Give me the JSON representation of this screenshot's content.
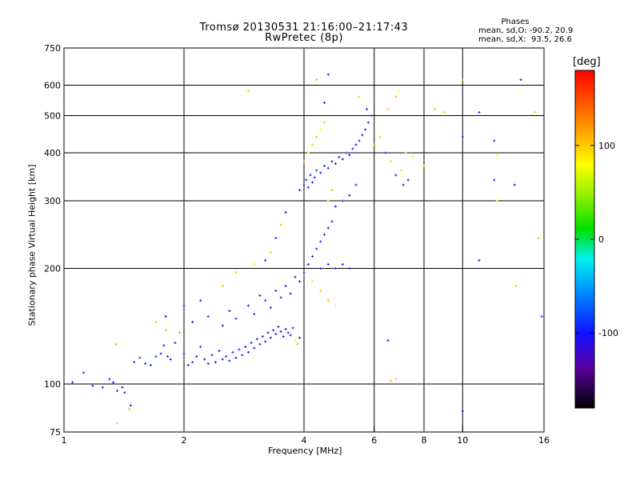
{
  "chart_data": {
    "type": "scatter",
    "title": "Tromsø 20130531 21:16:00–21:17:43",
    "subtitle": "RwPretec (8p)",
    "xlabel": "Frequency [MHz]",
    "ylabel": "Stationary phase Virtual Height [km]",
    "x_scale": "log",
    "y_scale": "log",
    "xlim": [
      1,
      16
    ],
    "ylim": [
      75,
      750
    ],
    "x_ticks": [
      "1",
      "2",
      "4",
      "6",
      "8",
      "10",
      "16"
    ],
    "x_tick_values": [
      1,
      2,
      4,
      6,
      8,
      10,
      16
    ],
    "y_ticks": [
      "750",
      "600",
      "500",
      "400",
      "300",
      "200",
      "100",
      "75"
    ],
    "y_tick_values": [
      750,
      600,
      500,
      400,
      300,
      200,
      100,
      75
    ],
    "grid_x": [
      2,
      4,
      6,
      8,
      10
    ],
    "grid_y": [
      600,
      500,
      400,
      300,
      200,
      100
    ],
    "colorbar": {
      "label": "[deg]",
      "range": [
        -180,
        180
      ],
      "ticks": [
        "100",
        "0",
        "-100"
      ],
      "tick_values": [
        100,
        0,
        -100
      ]
    },
    "phase_legend": {
      "heading": "Phases",
      "line_o": "mean, sd,O: -90.2, 20.9",
      "line_x": "mean, sd,X:  93.5, 26.6"
    },
    "series": [
      {
        "points": [
          [
            1.05,
            101,
            -110
          ],
          [
            1.12,
            107,
            -90
          ],
          [
            1.18,
            99,
            -100
          ],
          [
            1.25,
            98,
            -95
          ],
          [
            1.3,
            103,
            -110
          ],
          [
            1.33,
            101,
            -100
          ],
          [
            1.36,
            96,
            -90
          ],
          [
            1.4,
            98,
            -120
          ],
          [
            1.42,
            95,
            -100
          ],
          [
            1.36,
            79,
            100
          ],
          [
            1.46,
            86,
            110
          ],
          [
            1.47,
            88,
            -100
          ],
          [
            1.35,
            127,
            120
          ],
          [
            1.5,
            114,
            -100
          ],
          [
            1.55,
            117,
            -90
          ],
          [
            1.6,
            113,
            -110
          ],
          [
            1.65,
            112,
            -100
          ],
          [
            1.7,
            118,
            -80
          ],
          [
            1.75,
            120,
            -110
          ],
          [
            1.78,
            126,
            -100
          ],
          [
            1.82,
            118,
            -90
          ],
          [
            1.85,
            116,
            -105
          ],
          [
            1.9,
            128,
            -100
          ],
          [
            1.95,
            136,
            120
          ],
          [
            2.0,
            120,
            -100
          ],
          [
            2.05,
            112,
            -110
          ],
          [
            2.1,
            114,
            -90
          ],
          [
            2.15,
            118,
            -100
          ],
          [
            2.2,
            125,
            -95
          ],
          [
            2.25,
            116,
            -110
          ],
          [
            2.3,
            113,
            -100
          ],
          [
            2.35,
            119,
            -90
          ],
          [
            2.4,
            114,
            -105
          ],
          [
            2.45,
            122,
            -100
          ],
          [
            2.5,
            116,
            -110
          ],
          [
            2.55,
            118,
            -95
          ],
          [
            2.6,
            115,
            -100
          ],
          [
            2.65,
            121,
            -90
          ],
          [
            2.7,
            117,
            -110
          ],
          [
            2.75,
            123,
            -100
          ],
          [
            2.8,
            119,
            -95
          ],
          [
            2.85,
            125,
            -100
          ],
          [
            2.9,
            121,
            -110
          ],
          [
            2.95,
            128,
            -90
          ],
          [
            3.0,
            124,
            -100
          ],
          [
            3.05,
            131,
            -105
          ],
          [
            3.1,
            127,
            -100
          ],
          [
            3.15,
            133,
            -110
          ],
          [
            3.2,
            129,
            -140
          ],
          [
            3.25,
            136,
            -100
          ],
          [
            3.3,
            132,
            -150
          ],
          [
            3.35,
            138,
            -100
          ],
          [
            3.4,
            135,
            -120
          ],
          [
            3.45,
            141,
            -100
          ],
          [
            3.5,
            137,
            -130
          ],
          [
            3.55,
            133,
            -110
          ],
          [
            3.6,
            139,
            -100
          ],
          [
            3.65,
            136,
            -140
          ],
          [
            3.7,
            134,
            -100
          ],
          [
            3.75,
            140,
            -90
          ],
          [
            3.8,
            130,
            80
          ],
          [
            3.85,
            127,
            100
          ],
          [
            3.9,
            132,
            -100
          ],
          [
            1.8,
            138,
            110
          ],
          [
            2.1,
            145,
            -100
          ],
          [
            2.3,
            150,
            -90
          ],
          [
            2.5,
            142,
            -110
          ],
          [
            2.6,
            155,
            -100
          ],
          [
            2.7,
            148,
            -95
          ],
          [
            2.9,
            160,
            -100
          ],
          [
            3.0,
            152,
            -110
          ],
          [
            3.1,
            170,
            -100
          ],
          [
            3.2,
            165,
            -90
          ],
          [
            3.3,
            158,
            -100
          ],
          [
            3.4,
            175,
            -110
          ],
          [
            3.5,
            168,
            -100
          ],
          [
            3.6,
            180,
            -95
          ],
          [
            3.7,
            172,
            -100
          ],
          [
            3.8,
            190,
            -110
          ],
          [
            3.9,
            185,
            -100
          ],
          [
            4.0,
            195,
            -90
          ],
          [
            4.1,
            205,
            -100
          ],
          [
            4.2,
            215,
            -110
          ],
          [
            4.3,
            225,
            -100
          ],
          [
            4.4,
            235,
            -95
          ],
          [
            4.5,
            245,
            -100
          ],
          [
            4.6,
            255,
            -110
          ],
          [
            4.7,
            265,
            -100
          ],
          [
            3.9,
            320,
            -100
          ],
          [
            4.0,
            330,
            -110
          ],
          [
            4.05,
            340,
            -100
          ],
          [
            4.1,
            325,
            -95
          ],
          [
            4.15,
            350,
            -100
          ],
          [
            4.2,
            335,
            -110
          ],
          [
            4.25,
            345,
            -100
          ],
          [
            4.3,
            360,
            -90
          ],
          [
            4.4,
            355,
            -100
          ],
          [
            4.5,
            370,
            -110
          ],
          [
            4.6,
            365,
            -100
          ],
          [
            4.7,
            380,
            -95
          ],
          [
            4.8,
            375,
            -100
          ],
          [
            4.9,
            390,
            -110
          ],
          [
            5.0,
            385,
            -100
          ],
          [
            5.1,
            400,
            -90
          ],
          [
            5.2,
            395,
            -100
          ],
          [
            5.3,
            410,
            -110
          ],
          [
            5.4,
            420,
            -100
          ],
          [
            5.5,
            430,
            -95
          ],
          [
            5.6,
            445,
            -100
          ],
          [
            5.7,
            460,
            -110
          ],
          [
            5.8,
            480,
            -100
          ],
          [
            5.9,
            500,
            -95
          ],
          [
            5.75,
            520,
            -100
          ],
          [
            4.2,
            420,
            100
          ],
          [
            4.3,
            440,
            110
          ],
          [
            4.4,
            460,
            90
          ],
          [
            4.5,
            480,
            100
          ],
          [
            4.1,
            400,
            80
          ],
          [
            4.0,
            380,
            120
          ],
          [
            4.6,
            300,
            100
          ],
          [
            4.7,
            320,
            110
          ],
          [
            4.8,
            290,
            -100
          ],
          [
            5.0,
            300,
            -110
          ],
          [
            5.2,
            310,
            -100
          ],
          [
            5.4,
            330,
            -95
          ],
          [
            6.0,
            420,
            110
          ],
          [
            6.2,
            440,
            100
          ],
          [
            6.4,
            400,
            -100
          ],
          [
            6.6,
            380,
            100
          ],
          [
            6.8,
            350,
            -110
          ],
          [
            7.0,
            360,
            90
          ],
          [
            6.5,
            520,
            100
          ],
          [
            6.8,
            560,
            110
          ],
          [
            6.9,
            580,
            80
          ],
          [
            5.5,
            560,
            100
          ],
          [
            4.6,
            640,
            -100
          ],
          [
            4.3,
            620,
            110
          ],
          [
            4.5,
            540,
            -100
          ],
          [
            4.4,
            200,
            -110
          ],
          [
            4.6,
            205,
            -100
          ],
          [
            4.8,
            200,
            -90
          ],
          [
            5.0,
            205,
            -100
          ],
          [
            5.2,
            200,
            -110
          ],
          [
            4.2,
            185,
            90
          ],
          [
            4.4,
            175,
            100
          ],
          [
            4.6,
            165,
            110
          ],
          [
            4.8,
            160,
            80
          ],
          [
            3.6,
            280,
            -100
          ],
          [
            3.5,
            260,
            110
          ],
          [
            3.4,
            240,
            -100
          ],
          [
            3.3,
            220,
            100
          ],
          [
            3.2,
            210,
            -110
          ],
          [
            3.0,
            205,
            90
          ],
          [
            2.7,
            195,
            100
          ],
          [
            2.5,
            180,
            110
          ],
          [
            2.2,
            165,
            -100
          ],
          [
            2.0,
            160,
            -110
          ],
          [
            1.8,
            150,
            -100
          ],
          [
            1.7,
            145,
            100
          ],
          [
            2.9,
            580,
            100
          ],
          [
            8.5,
            520,
            110
          ],
          [
            9.0,
            510,
            100
          ],
          [
            10.0,
            620,
            110
          ],
          [
            11.0,
            510,
            -100
          ],
          [
            12.0,
            430,
            -110
          ],
          [
            12.2,
            395,
            80
          ],
          [
            12.0,
            340,
            -100
          ],
          [
            13.5,
            330,
            -110
          ],
          [
            14.0,
            620,
            -100
          ],
          [
            15.2,
            510,
            100
          ],
          [
            15.5,
            240,
            110
          ],
          [
            15.8,
            150,
            -80
          ],
          [
            12.2,
            300,
            100
          ],
          [
            11.0,
            210,
            -110
          ],
          [
            13.6,
            180,
            100
          ],
          [
            10.0,
            85,
            -100
          ],
          [
            10.0,
            440,
            -90
          ],
          [
            8.0,
            370,
            110
          ],
          [
            7.5,
            390,
            90
          ],
          [
            6.6,
            102,
            110
          ],
          [
            6.8,
            103,
            100
          ],
          [
            6.5,
            130,
            -100
          ],
          [
            7.2,
            400,
            100
          ],
          [
            7.3,
            340,
            -110
          ],
          [
            7.1,
            330,
            -100
          ]
        ]
      }
    ]
  }
}
